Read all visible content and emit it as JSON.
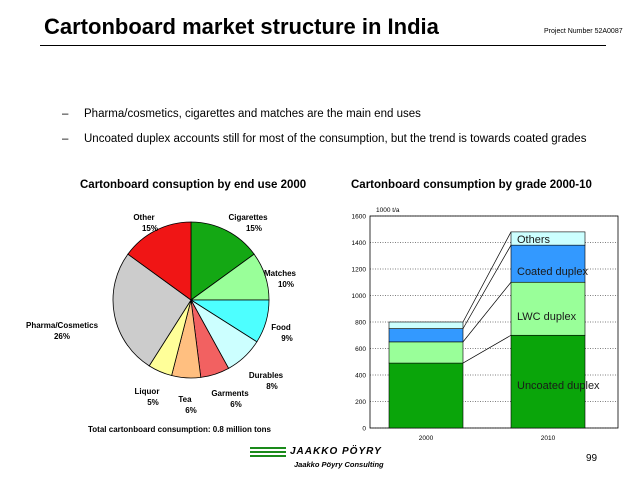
{
  "header": {
    "title": "Cartonboard market structure in India",
    "project": "Project Number 52A0087"
  },
  "bullets": [
    {
      "dash": "–",
      "text": "Pharma/cosmetics, cigarettes and matches are the main end uses"
    },
    {
      "dash": "–",
      "text": "Uncoated duplex accounts still for most of the consumption, but the trend is towards coated grades"
    }
  ],
  "chart_data": [
    {
      "type": "pie",
      "title": "Cartonboard consuption by end use 2000",
      "slices": [
        {
          "name": "Cigarettes",
          "label": "15%",
          "value": 15,
          "color": "#14a814"
        },
        {
          "name": "Matches",
          "label": "10%",
          "value": 10,
          "color": "#99ff99"
        },
        {
          "name": "Food",
          "label": "9%",
          "value": 9,
          "color": "#4dffff"
        },
        {
          "name": "Durables",
          "label": "8%",
          "value": 8,
          "color": "#ccffff"
        },
        {
          "name": "Garments",
          "label": "6%",
          "value": 6,
          "color": "#f26161"
        },
        {
          "name": "Tea",
          "label": "6%",
          "value": 6,
          "color": "#ffbf80"
        },
        {
          "name": "Liquor",
          "label": "5%",
          "value": 5,
          "color": "#ffff99"
        },
        {
          "name": "Pharma/Cosmetics",
          "label": "26%",
          "value": 26,
          "color": "#cccccc"
        },
        {
          "name": "Other",
          "label": "15%",
          "value": 15,
          "color": "#f01515"
        }
      ],
      "note": "Total cartonboard consumption: 0.8 million tons"
    },
    {
      "type": "bar",
      "stacked": true,
      "title": "Cartonboard consumption by grade 2000-10",
      "ylabel": "1000 t/a",
      "categories": [
        "2000",
        "2010"
      ],
      "ylim": [
        0,
        1600
      ],
      "yticks": [
        0,
        200,
        400,
        600,
        800,
        1000,
        1200,
        1400,
        1600
      ],
      "grid": true,
      "series": [
        {
          "name": "Uncoated duplex",
          "values": [
            490,
            700
          ],
          "color": "#0aa50a"
        },
        {
          "name": "LWC duplex",
          "values": [
            160,
            400
          ],
          "color": "#99ff99"
        },
        {
          "name": "Coated duplex",
          "values": [
            100,
            280
          ],
          "color": "#3399ff"
        },
        {
          "name": "Others",
          "values": [
            50,
            100
          ],
          "color": "#ccffff"
        }
      ]
    }
  ],
  "footer": {
    "logo_main": "JAAKKO PÖYRY",
    "logo_sub": "Jaakko Pöyry Consulting",
    "page": "99"
  }
}
